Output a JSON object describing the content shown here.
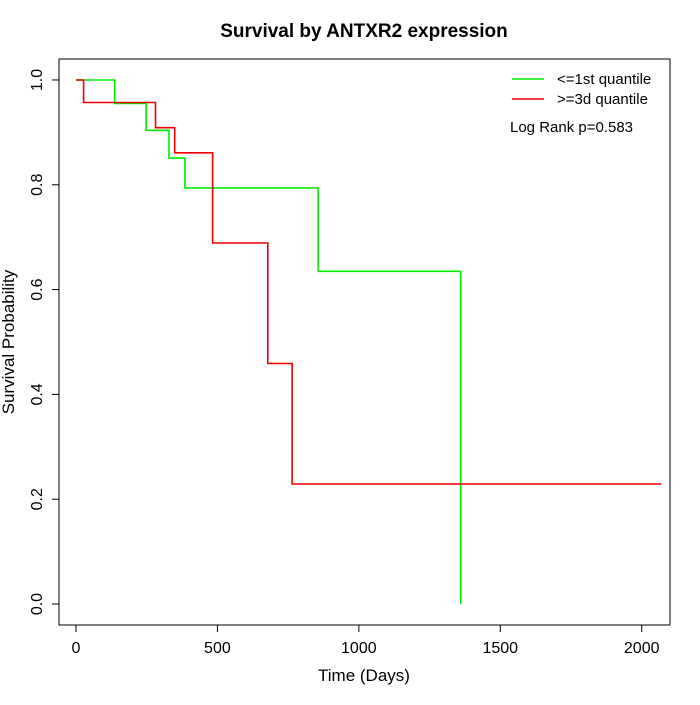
{
  "chart_data": {
    "type": "line",
    "title": "Survival by ANTXR2 expression",
    "xlabel": "Time (Days)",
    "ylabel": "Survival Probability",
    "xlim": [
      -60,
      2100
    ],
    "ylim": [
      -0.04,
      1.04
    ],
    "x_ticks": [
      0,
      500,
      1000,
      1500,
      2000
    ],
    "y_ticks": [
      0.0,
      0.2,
      0.4,
      0.6,
      0.8,
      1.0
    ],
    "x_tick_labels": [
      "0",
      "500",
      "1000",
      "1500",
      "2000"
    ],
    "y_tick_labels": [
      "0.0",
      "0.2",
      "0.4",
      "0.6",
      "0.8",
      "1.0"
    ],
    "grid": false,
    "legend_position": "top-right",
    "annotation": "Log Rank p=0.583",
    "series": [
      {
        "name": "<=1st quantile",
        "color": "#00ee00",
        "step": true,
        "x": [
          0,
          137,
          137,
          248,
          248,
          329,
          329,
          385,
          385,
          856,
          856,
          1360,
          1360
        ],
        "y": [
          1.0,
          1.0,
          0.955,
          0.955,
          0.904,
          0.904,
          0.851,
          0.851,
          0.794,
          0.794,
          0.635,
          0.635,
          0.0
        ]
      },
      {
        "name": ">=3d quantile",
        "color": "#ee0000",
        "step": true,
        "x": [
          0,
          27,
          27,
          281,
          281,
          349,
          349,
          483,
          483,
          678,
          678,
          764,
          764,
          2070
        ],
        "y": [
          1.0,
          1.0,
          0.957,
          0.957,
          0.909,
          0.909,
          0.861,
          0.861,
          0.689,
          0.689,
          0.459,
          0.459,
          0.229,
          0.229
        ]
      }
    ]
  }
}
